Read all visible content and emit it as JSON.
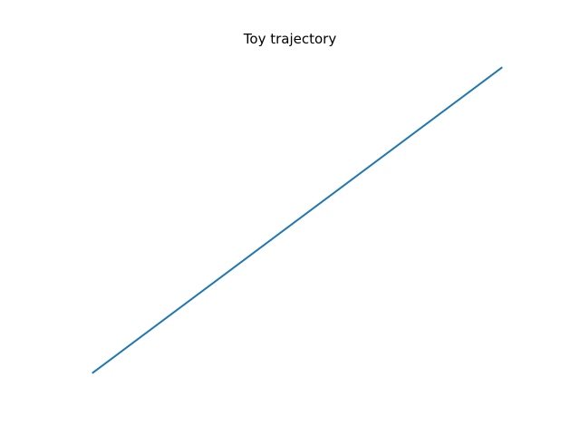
{
  "chart_data": {
    "type": "line",
    "title": "Toy trajectory",
    "xlabel": "",
    "ylabel": "",
    "axes_visible": false,
    "grid": false,
    "series": [
      {
        "color": "#1f77b4",
        "x": [
          0,
          1
        ],
        "y": [
          0,
          1
        ]
      }
    ]
  }
}
